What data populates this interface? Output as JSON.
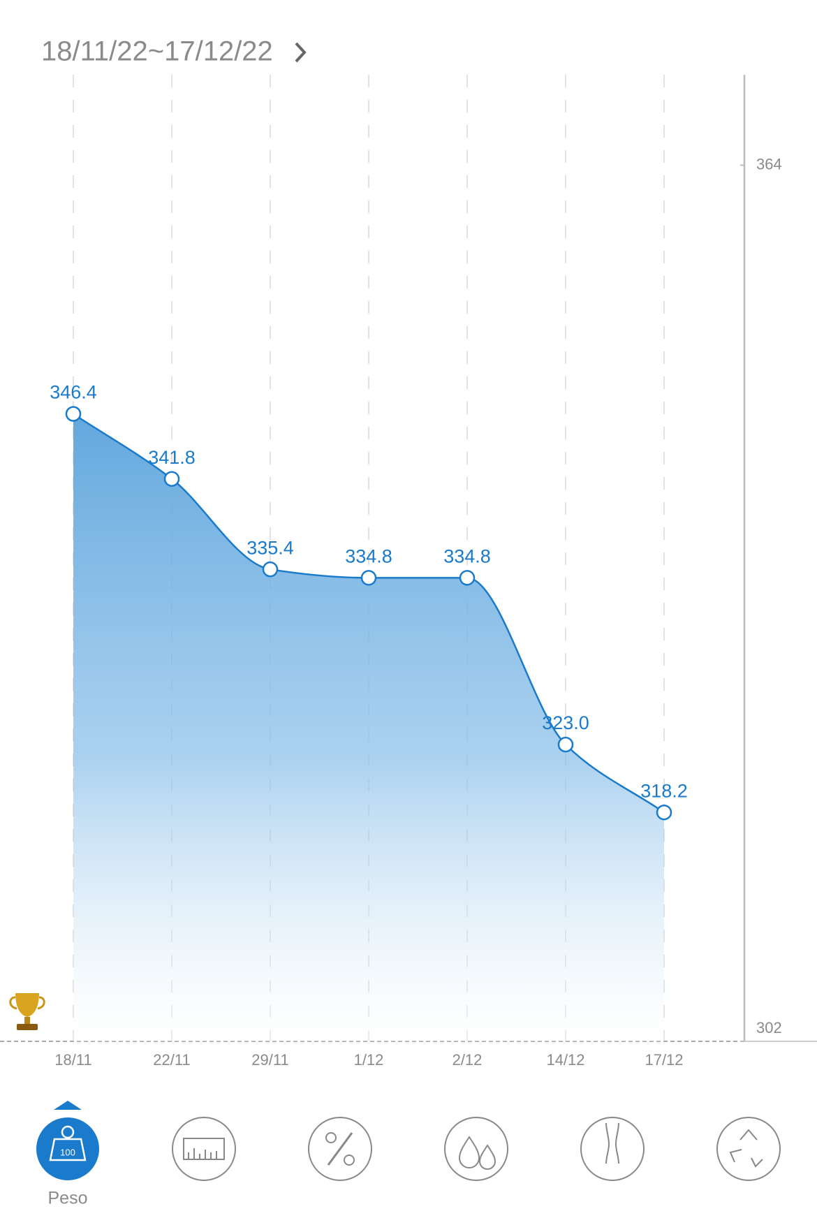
{
  "chart_data": {
    "type": "line",
    "title": "18/11/22~17/12/22",
    "categories": [
      "18/11",
      "22/11",
      "29/11",
      "1/12",
      "2/12",
      "14/12",
      "17/12"
    ],
    "values": [
      346.4,
      341.8,
      335.4,
      334.8,
      334.8,
      323.0,
      318.2
    ],
    "value_labels": [
      "346.4",
      "341.8",
      "335.4",
      "334.8",
      "334.8",
      "323.0",
      "318.2"
    ],
    "color": "#1a7acb",
    "ylim": [
      302,
      370.4
    ],
    "yticks": [
      302,
      364
    ],
    "grid": true
  },
  "tabs": [
    {
      "label": "Peso",
      "icon_text": "100"
    }
  ]
}
